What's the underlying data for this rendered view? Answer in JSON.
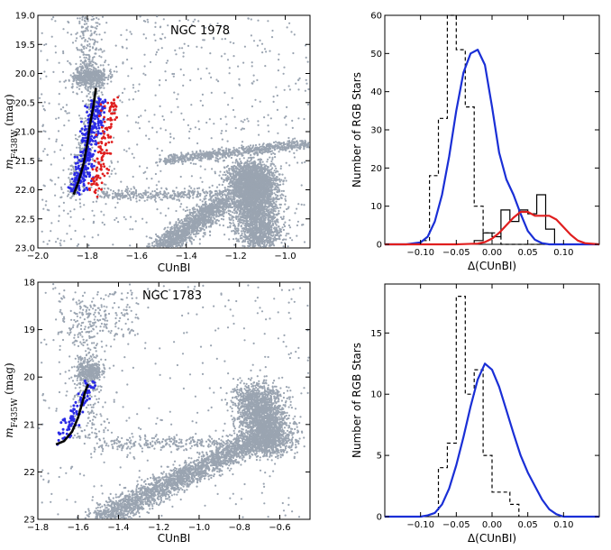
{
  "chart_data": [
    {
      "id": "cmd1",
      "type": "scatter",
      "title": "NGC 1978",
      "xlabel": "CUnBI",
      "ylabel_main": "m",
      "ylabel_sub": "F438W",
      "ylabel_tail": " (mag)",
      "xlim": [
        -2.0,
        -0.9
      ],
      "ylim": [
        23.0,
        19.0
      ],
      "xticks": [
        -2.0,
        -1.8,
        -1.6,
        -1.4,
        -1.2,
        -1.0
      ],
      "xtick_labels": [
        "−2.0",
        "−1.8",
        "−1.6",
        "−1.4",
        "−1.2",
        "−1.0"
      ],
      "yticks": [
        19.0,
        19.5,
        20.0,
        20.5,
        21.0,
        21.5,
        22.0,
        22.5,
        23.0
      ],
      "ytick_labels": [
        "19.0",
        "19.5",
        "20.0",
        "20.5",
        "21.0",
        "21.5",
        "22.0",
        "22.5",
        "23.0"
      ],
      "fiducial": [
        [
          -1.855,
          22.08
        ],
        [
          -1.835,
          21.85
        ],
        [
          -1.815,
          21.55
        ],
        [
          -1.8,
          21.2
        ],
        [
          -1.788,
          20.85
        ],
        [
          -1.775,
          20.55
        ],
        [
          -1.765,
          20.25
        ]
      ],
      "colors": {
        "field": "#9aa4b1",
        "blue": "#2a2ae6",
        "red": "#e01e1e",
        "line": "#000000"
      }
    },
    {
      "id": "hist1",
      "type": "histogram",
      "xlabel": "Δ(CUnBI)",
      "ylabel": "Number of RGB Stars",
      "xlim": [
        -0.15,
        0.15
      ],
      "ylim": [
        0,
        60
      ],
      "xticks": [
        -0.1,
        -0.05,
        0.0,
        0.05,
        0.1
      ],
      "xtick_labels": [
        "−0.10",
        "−0.05",
        "0.00",
        "0.05",
        "0.10"
      ],
      "yticks": [
        0,
        10,
        20,
        30,
        40,
        50,
        60
      ],
      "ytick_labels": [
        "0",
        "10",
        "20",
        "30",
        "40",
        "50",
        "60"
      ],
      "bin_width": 0.0125,
      "series": [
        {
          "name": "blue (dashed)",
          "bin_edges_start": -0.1,
          "counts": [
            1,
            18,
            33,
            60,
            51,
            36,
            10,
            3,
            3,
            0,
            0,
            0,
            0,
            0,
            0,
            0
          ],
          "style": "dashed"
        },
        {
          "name": "red (solid)",
          "bin_edges_start": -0.025,
          "counts": [
            1,
            3,
            2,
            9,
            6,
            9,
            8,
            13,
            4,
            0
          ],
          "style": "solid"
        }
      ],
      "kde": [
        {
          "name": "blue KDE",
          "color": "#1a2fd6",
          "x": [
            -0.15,
            -0.12,
            -0.1,
            -0.09,
            -0.08,
            -0.07,
            -0.06,
            -0.05,
            -0.04,
            -0.03,
            -0.02,
            -0.01,
            0.0,
            0.01,
            0.02,
            0.03,
            0.04,
            0.05,
            0.06,
            0.07,
            0.08,
            0.1,
            0.15
          ],
          "y": [
            0,
            0,
            0.5,
            2,
            6,
            13,
            23,
            35,
            45,
            50,
            51,
            47,
            36,
            24,
            17,
            13,
            8,
            3.5,
            1.2,
            0.3,
            0,
            0,
            0
          ]
        },
        {
          "name": "red KDE",
          "color": "#e01e1e",
          "x": [
            -0.15,
            -0.05,
            -0.02,
            -0.01,
            0.0,
            0.01,
            0.02,
            0.03,
            0.04,
            0.05,
            0.06,
            0.07,
            0.08,
            0.09,
            0.1,
            0.11,
            0.12,
            0.13,
            0.15
          ],
          "y": [
            0,
            0,
            0.2,
            0.6,
            1.5,
            3,
            5,
            7,
            8.5,
            8.5,
            7.5,
            7.5,
            7.5,
            6.5,
            4.5,
            2.5,
            1,
            0.3,
            0
          ]
        }
      ]
    },
    {
      "id": "cmd2",
      "type": "scatter",
      "title": "NGC 1783",
      "xlabel": "CUnBI",
      "ylabel_main": "m",
      "ylabel_sub": "F435W",
      "ylabel_tail": " (mag)",
      "xlim": [
        -1.8,
        -0.45
      ],
      "ylim": [
        23.0,
        18.0
      ],
      "xticks": [
        -1.8,
        -1.6,
        -1.4,
        -1.2,
        -1.0,
        -0.8,
        -0.6
      ],
      "xtick_labels": [
        "−1.8",
        "−1.6",
        "−1.4",
        "−1.2",
        "−1.0",
        "−0.8",
        "−0.6"
      ],
      "yticks": [
        18,
        19,
        20,
        21,
        22,
        23
      ],
      "ytick_labels": [
        "18",
        "19",
        "20",
        "21",
        "22",
        "23"
      ],
      "fiducial": [
        [
          -1.71,
          21.42
        ],
        [
          -1.67,
          21.35
        ],
        [
          -1.63,
          21.15
        ],
        [
          -1.6,
          20.85
        ],
        [
          -1.58,
          20.55
        ],
        [
          -1.565,
          20.3
        ],
        [
          -1.55,
          20.15
        ]
      ],
      "colors": {
        "field": "#9aa4b1",
        "blue": "#2a2ae6",
        "line": "#000000"
      }
    },
    {
      "id": "hist2",
      "type": "histogram",
      "xlabel": "Δ(CUnBI)",
      "ylabel": "Number of RGB Stars",
      "xlim": [
        -0.15,
        0.15
      ],
      "ylim": [
        0,
        19
      ],
      "xticks": [
        -0.1,
        -0.05,
        0.0,
        0.05,
        0.1
      ],
      "xtick_labels": [
        "−0.10",
        "−0.05",
        "0.00",
        "0.05",
        "0.10"
      ],
      "yticks": [
        0,
        5,
        10,
        15
      ],
      "ytick_labels": [
        "0",
        "5",
        "10",
        "15"
      ],
      "bin_width": 0.0125,
      "series": [
        {
          "name": "dashed",
          "bin_edges_start": -0.075,
          "counts": [
            4,
            6,
            18,
            10,
            12,
            5,
            2,
            1
          ],
          "style": "dashed",
          "bin_width_override": [
            0.0125,
            0.0125,
            0.0125,
            0.0125,
            0.0125,
            0.0125,
            0.025,
            0.0125
          ]
        }
      ],
      "kde": [
        {
          "name": "blue KDE",
          "color": "#1a2fd6",
          "x": [
            -0.15,
            -0.1,
            -0.09,
            -0.08,
            -0.07,
            -0.06,
            -0.05,
            -0.04,
            -0.03,
            -0.02,
            -0.01,
            0.0,
            0.01,
            0.02,
            0.03,
            0.04,
            0.05,
            0.06,
            0.07,
            0.08,
            0.09,
            0.1,
            0.15
          ],
          "y": [
            0,
            0,
            0.1,
            0.3,
            1,
            2.3,
            4.2,
            6.5,
            9,
            11.2,
            12.5,
            12,
            10.6,
            8.7,
            6.8,
            5,
            3.6,
            2.5,
            1.4,
            0.6,
            0.2,
            0,
            0
          ]
        }
      ]
    }
  ]
}
